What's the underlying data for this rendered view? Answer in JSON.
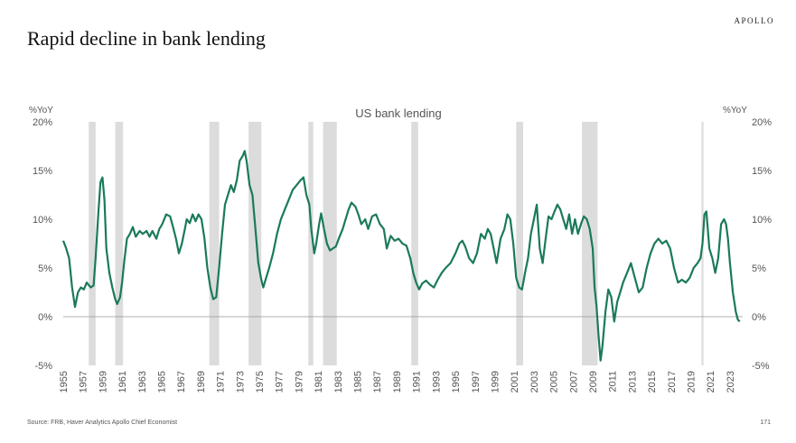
{
  "brand": "APOLLO",
  "page_title": "Rapid decline in bank lending",
  "source": "Source: FRB, Haver Analytics Apollo Chief Economist",
  "page_number": "171",
  "colors": {
    "line": "#1a7a5a",
    "recession": "#dcdcdc",
    "axis": "#999999"
  },
  "chart_data": {
    "type": "line",
    "title": "US bank lending",
    "ylabel_left": "%YoY",
    "ylabel_right": "%YoY",
    "xlim": [
      1955,
      2024.3
    ],
    "ylim": [
      -5,
      20
    ],
    "y_ticks": [
      -5,
      0,
      5,
      10,
      15,
      20
    ],
    "y_tick_labels": [
      "-5%",
      "0%",
      "5%",
      "10%",
      "15%",
      "20%"
    ],
    "x_tick_labels": [
      "1955",
      "1957",
      "1959",
      "1961",
      "1963",
      "1965",
      "1967",
      "1969",
      "1971",
      "1973",
      "1975",
      "1977",
      "1979",
      "1981",
      "1983",
      "1985",
      "1987",
      "1989",
      "1991",
      "1993",
      "1995",
      "1997",
      "1999",
      "2001",
      "2003",
      "2005",
      "2007",
      "2009",
      "2011",
      "2013",
      "2015",
      "2017",
      "2019",
      "2021",
      "2023"
    ],
    "recessions": [
      [
        1957.6,
        1958.3
      ],
      [
        1960.3,
        1961.1
      ],
      [
        1969.9,
        1970.9
      ],
      [
        1973.9,
        1975.2
      ],
      [
        1980.0,
        1980.5
      ],
      [
        1981.5,
        1982.9
      ],
      [
        1990.5,
        1991.2
      ],
      [
        2001.2,
        2001.9
      ],
      [
        2007.9,
        2009.5
      ],
      [
        2020.1,
        2020.3
      ]
    ],
    "series": [
      {
        "values": [
          [
            1955.0,
            7.8
          ],
          [
            1955.3,
            7.0
          ],
          [
            1955.6,
            6.0
          ],
          [
            1955.9,
            3.0
          ],
          [
            1956.2,
            1.0
          ],
          [
            1956.5,
            2.5
          ],
          [
            1956.8,
            3.0
          ],
          [
            1957.1,
            2.8
          ],
          [
            1957.4,
            3.5
          ],
          [
            1957.8,
            3.0
          ],
          [
            1958.1,
            3.2
          ],
          [
            1958.3,
            6.0
          ],
          [
            1958.6,
            11.0
          ],
          [
            1958.8,
            13.8
          ],
          [
            1959.0,
            14.3
          ],
          [
            1959.2,
            12.0
          ],
          [
            1959.4,
            7.0
          ],
          [
            1959.7,
            4.5
          ],
          [
            1960.0,
            3.0
          ],
          [
            1960.3,
            1.8
          ],
          [
            1960.5,
            1.3
          ],
          [
            1960.8,
            2.0
          ],
          [
            1961.0,
            3.5
          ],
          [
            1961.2,
            5.5
          ],
          [
            1961.5,
            8.0
          ],
          [
            1961.8,
            8.5
          ],
          [
            1962.1,
            9.2
          ],
          [
            1962.4,
            8.2
          ],
          [
            1962.8,
            8.8
          ],
          [
            1963.1,
            8.5
          ],
          [
            1963.5,
            8.8
          ],
          [
            1963.8,
            8.2
          ],
          [
            1964.1,
            8.8
          ],
          [
            1964.5,
            8.0
          ],
          [
            1964.8,
            9.0
          ],
          [
            1965.1,
            9.5
          ],
          [
            1965.5,
            10.5
          ],
          [
            1965.9,
            10.3
          ],
          [
            1966.2,
            9.2
          ],
          [
            1966.5,
            8.0
          ],
          [
            1966.8,
            6.5
          ],
          [
            1967.1,
            7.5
          ],
          [
            1967.4,
            9.0
          ],
          [
            1967.6,
            10.0
          ],
          [
            1967.9,
            9.6
          ],
          [
            1968.2,
            10.5
          ],
          [
            1968.5,
            9.8
          ],
          [
            1968.8,
            10.5
          ],
          [
            1969.1,
            10.0
          ],
          [
            1969.4,
            8.0
          ],
          [
            1969.7,
            5.0
          ],
          [
            1970.0,
            3.0
          ],
          [
            1970.3,
            1.8
          ],
          [
            1970.6,
            2.0
          ],
          [
            1970.9,
            5.0
          ],
          [
            1971.2,
            8.5
          ],
          [
            1971.5,
            11.5
          ],
          [
            1971.8,
            12.5
          ],
          [
            1972.1,
            13.5
          ],
          [
            1972.4,
            12.8
          ],
          [
            1972.7,
            14.0
          ],
          [
            1973.0,
            16.0
          ],
          [
            1973.3,
            16.5
          ],
          [
            1973.5,
            17.0
          ],
          [
            1973.7,
            16.0
          ],
          [
            1974.0,
            13.5
          ],
          [
            1974.3,
            12.5
          ],
          [
            1974.6,
            9.0
          ],
          [
            1974.9,
            5.5
          ],
          [
            1975.2,
            3.8
          ],
          [
            1975.4,
            3.0
          ],
          [
            1975.7,
            4.0
          ],
          [
            1976.0,
            5.0
          ],
          [
            1976.4,
            6.5
          ],
          [
            1976.8,
            8.5
          ],
          [
            1977.2,
            10.0
          ],
          [
            1977.6,
            11.0
          ],
          [
            1978.0,
            12.0
          ],
          [
            1978.4,
            13.0
          ],
          [
            1978.8,
            13.5
          ],
          [
            1979.2,
            14.0
          ],
          [
            1979.5,
            14.3
          ],
          [
            1979.8,
            12.5
          ],
          [
            1980.1,
            11.5
          ],
          [
            1980.3,
            9.0
          ],
          [
            1980.6,
            6.5
          ],
          [
            1980.8,
            7.5
          ],
          [
            1981.1,
            9.5
          ],
          [
            1981.3,
            10.6
          ],
          [
            1981.6,
            9.0
          ],
          [
            1981.9,
            7.5
          ],
          [
            1982.2,
            6.8
          ],
          [
            1982.5,
            7.0
          ],
          [
            1982.8,
            7.2
          ],
          [
            1983.1,
            8.0
          ],
          [
            1983.5,
            9.0
          ],
          [
            1983.8,
            10.0
          ],
          [
            1984.1,
            11.0
          ],
          [
            1984.4,
            11.7
          ],
          [
            1984.8,
            11.3
          ],
          [
            1985.1,
            10.5
          ],
          [
            1985.4,
            9.5
          ],
          [
            1985.8,
            10.0
          ],
          [
            1986.1,
            9.0
          ],
          [
            1986.5,
            10.3
          ],
          [
            1986.9,
            10.5
          ],
          [
            1987.3,
            9.5
          ],
          [
            1987.7,
            9.0
          ],
          [
            1988.0,
            7.0
          ],
          [
            1988.4,
            8.3
          ],
          [
            1988.8,
            7.8
          ],
          [
            1989.2,
            8.0
          ],
          [
            1989.6,
            7.5
          ],
          [
            1990.0,
            7.3
          ],
          [
            1990.4,
            6.0
          ],
          [
            1990.7,
            4.5
          ],
          [
            1991.0,
            3.5
          ],
          [
            1991.3,
            2.8
          ],
          [
            1991.6,
            3.4
          ],
          [
            1992.0,
            3.7
          ],
          [
            1992.4,
            3.3
          ],
          [
            1992.8,
            3.0
          ],
          [
            1993.2,
            3.8
          ],
          [
            1993.6,
            4.5
          ],
          [
            1994.0,
            5.0
          ],
          [
            1994.5,
            5.5
          ],
          [
            1995.0,
            6.5
          ],
          [
            1995.4,
            7.5
          ],
          [
            1995.7,
            7.8
          ],
          [
            1996.0,
            7.2
          ],
          [
            1996.4,
            6.0
          ],
          [
            1996.8,
            5.5
          ],
          [
            1997.2,
            6.5
          ],
          [
            1997.6,
            8.5
          ],
          [
            1998.0,
            8.0
          ],
          [
            1998.3,
            9.0
          ],
          [
            1998.6,
            8.5
          ],
          [
            1998.9,
            7.0
          ],
          [
            1999.2,
            5.5
          ],
          [
            1999.6,
            8.0
          ],
          [
            2000.0,
            9.0
          ],
          [
            2000.3,
            10.5
          ],
          [
            2000.6,
            10.0
          ],
          [
            2000.9,
            7.5
          ],
          [
            2001.2,
            4.0
          ],
          [
            2001.5,
            3.0
          ],
          [
            2001.8,
            2.8
          ],
          [
            2002.1,
            4.5
          ],
          [
            2002.4,
            6.0
          ],
          [
            2002.7,
            8.5
          ],
          [
            2003.0,
            10.0
          ],
          [
            2003.3,
            11.5
          ],
          [
            2003.6,
            7.0
          ],
          [
            2003.9,
            5.5
          ],
          [
            2004.2,
            8.0
          ],
          [
            2004.5,
            10.3
          ],
          [
            2004.8,
            10.0
          ],
          [
            2005.1,
            10.8
          ],
          [
            2005.4,
            11.5
          ],
          [
            2005.7,
            11.0
          ],
          [
            2006.0,
            10.0
          ],
          [
            2006.3,
            9.0
          ],
          [
            2006.6,
            10.5
          ],
          [
            2006.9,
            8.5
          ],
          [
            2007.2,
            10.0
          ],
          [
            2007.5,
            8.5
          ],
          [
            2007.8,
            9.5
          ],
          [
            2008.1,
            10.3
          ],
          [
            2008.4,
            10.0
          ],
          [
            2008.7,
            9.0
          ],
          [
            2009.0,
            7.0
          ],
          [
            2009.2,
            3.0
          ],
          [
            2009.4,
            1.0
          ],
          [
            2009.6,
            -2.0
          ],
          [
            2009.8,
            -4.5
          ],
          [
            2010.0,
            -3.0
          ],
          [
            2010.3,
            0.5
          ],
          [
            2010.6,
            2.8
          ],
          [
            2010.9,
            2.0
          ],
          [
            2011.2,
            -0.5
          ],
          [
            2011.5,
            1.5
          ],
          [
            2011.8,
            2.5
          ],
          [
            2012.1,
            3.5
          ],
          [
            2012.5,
            4.5
          ],
          [
            2012.9,
            5.5
          ],
          [
            2013.3,
            4.0
          ],
          [
            2013.7,
            2.5
          ],
          [
            2014.1,
            3.0
          ],
          [
            2014.5,
            5.0
          ],
          [
            2014.9,
            6.5
          ],
          [
            2015.3,
            7.5
          ],
          [
            2015.7,
            8.0
          ],
          [
            2016.1,
            7.5
          ],
          [
            2016.5,
            7.8
          ],
          [
            2016.9,
            7.0
          ],
          [
            2017.3,
            5.0
          ],
          [
            2017.7,
            3.5
          ],
          [
            2018.1,
            3.8
          ],
          [
            2018.5,
            3.5
          ],
          [
            2018.9,
            4.0
          ],
          [
            2019.3,
            5.0
          ],
          [
            2019.7,
            5.5
          ],
          [
            2020.0,
            6.0
          ],
          [
            2020.2,
            7.5
          ],
          [
            2020.4,
            10.5
          ],
          [
            2020.6,
            10.8
          ],
          [
            2020.9,
            7.0
          ],
          [
            2021.2,
            6.0
          ],
          [
            2021.5,
            4.5
          ],
          [
            2021.8,
            6.0
          ],
          [
            2022.1,
            9.5
          ],
          [
            2022.4,
            10.0
          ],
          [
            2022.6,
            9.5
          ],
          [
            2022.8,
            8.0
          ],
          [
            2023.0,
            5.5
          ],
          [
            2023.3,
            2.5
          ],
          [
            2023.6,
            0.5
          ],
          [
            2023.8,
            -0.3
          ],
          [
            2024.0,
            -0.5
          ]
        ]
      }
    ]
  }
}
